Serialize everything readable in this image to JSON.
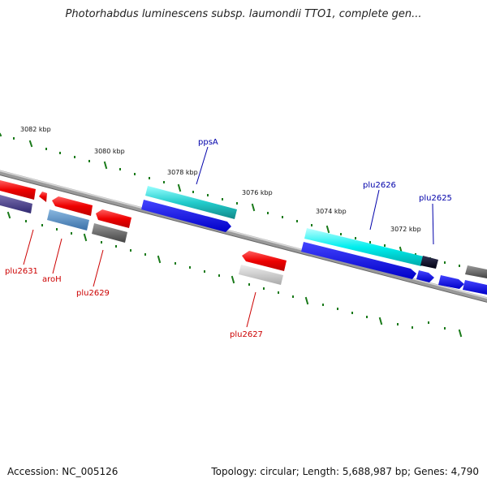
{
  "title": "Photorhabdus luminescens subsp. laumondii TTO1, complete gen...",
  "footer": {
    "accession": "Accession: NC_005126",
    "summary": "Topology: circular; Length: 5,688,987 bp; Genes: 4,790"
  },
  "scale_labels": [
    "3082 kbp",
    "3080 kbp",
    "3078 kbp",
    "3076 kbp",
    "3074 kbp",
    "3072 kbp"
  ],
  "gene_labels": {
    "ppsA": "ppsA",
    "plu2626": "plu2626",
    "plu2625": "plu2625",
    "plu2631": "plu2631",
    "aroH": "aroH",
    "plu2629": "plu2629",
    "plu2627": "plu2627"
  },
  "colors": {
    "forward_label": "#0000aa",
    "reverse_label": "#cc0000",
    "tick": "#1a7a1a",
    "backbone": "#808080"
  }
}
